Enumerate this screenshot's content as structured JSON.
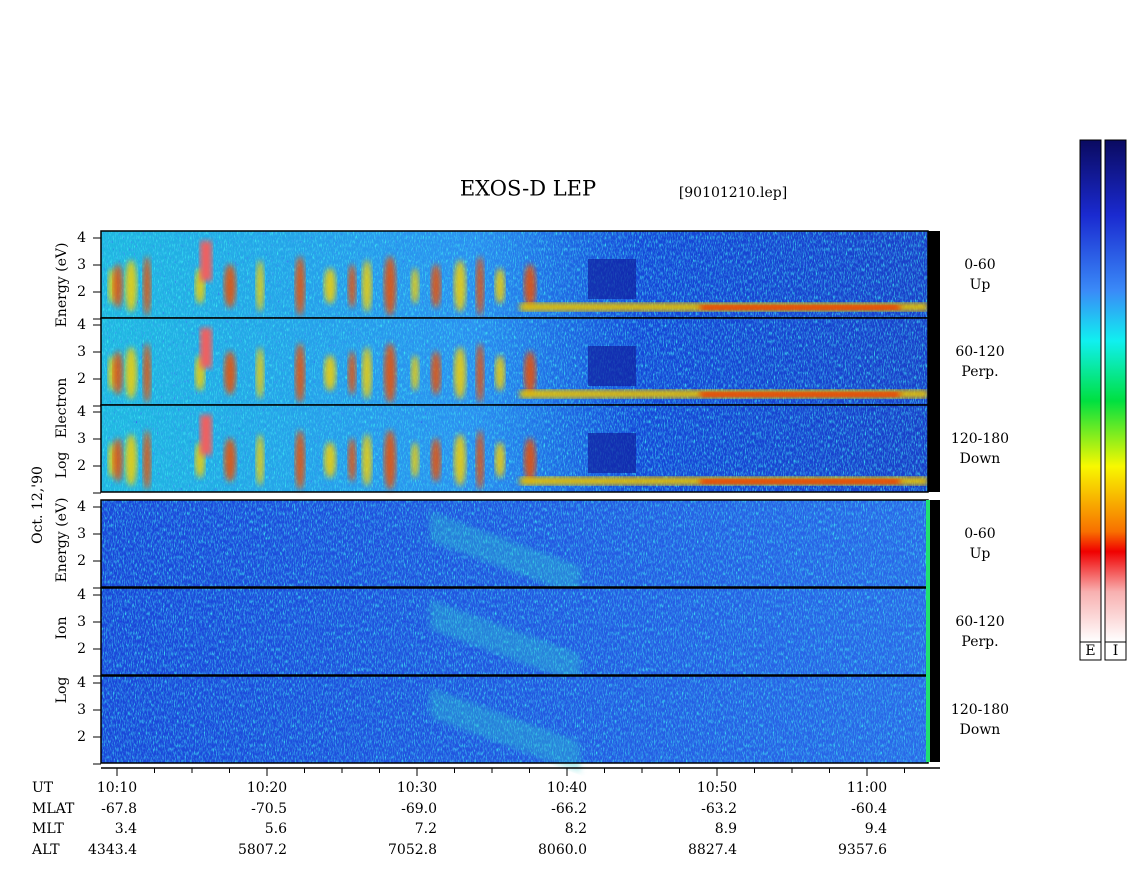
{
  "title": "EXOS-D LEP",
  "file": "[90101210.lep]",
  "date": "Oct. 12,'90",
  "electron_axis": [
    "Log",
    "Electron",
    "Energy (eV)"
  ],
  "ion_axis": [
    "Log",
    "Ion",
    "Energy (eV)"
  ],
  "y_ticks": [
    "4",
    "3",
    "2"
  ],
  "panels": [
    {
      "angle": "0-60",
      "direction": "Up"
    },
    {
      "angle": "60-120",
      "direction": "Perp."
    },
    {
      "angle": "120-180",
      "direction": "Down"
    },
    {
      "angle": "0-60",
      "direction": "Up"
    },
    {
      "angle": "60-120",
      "direction": "Perp."
    },
    {
      "angle": "120-180",
      "direction": "Down"
    }
  ],
  "table": {
    "headers": [
      "UT",
      "MLAT",
      "MLT",
      "ALT"
    ],
    "columns": [
      [
        "10:10",
        "-67.8",
        "3.4",
        "4343.4"
      ],
      [
        "10:20",
        "-70.5",
        "5.6",
        "5807.2"
      ],
      [
        "10:30",
        "-69.0",
        "7.2",
        "7052.8"
      ],
      [
        "10:40",
        "-66.2",
        "8.2",
        "8060.0"
      ],
      [
        "10:50",
        "-63.2",
        "8.9",
        "8827.4"
      ],
      [
        "11:00",
        "-60.4",
        "9.4",
        "9357.6"
      ]
    ]
  },
  "colorbars": [
    "E",
    "I"
  ]
}
